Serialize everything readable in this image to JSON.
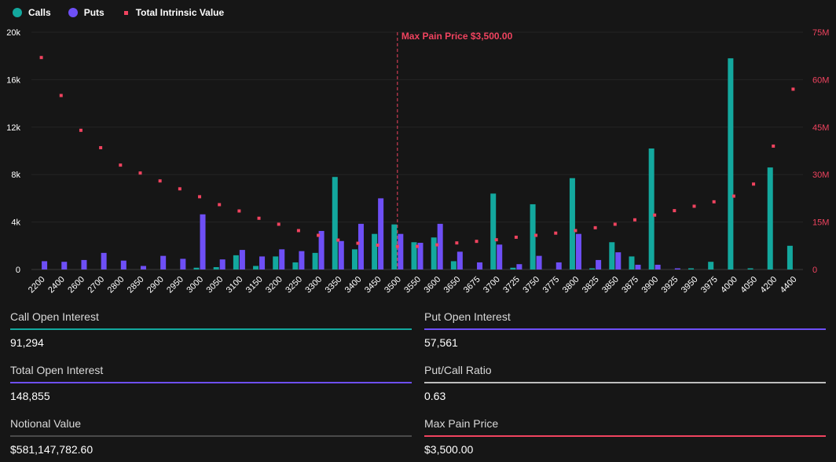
{
  "legend": {
    "calls": "Calls",
    "puts": "Puts",
    "intrinsic": "Total Intrinsic Value"
  },
  "colors": {
    "calls": "#13a89e",
    "puts": "#6e4ff6",
    "intrinsic": "#f0435f",
    "max_pain": "#f0435f",
    "gray_line": "#4a4a4a",
    "light_line": "#bdbdbd"
  },
  "chart_data": {
    "type": "bar",
    "title": "",
    "max_pain_label": "Max Pain Price $3,500.00",
    "max_pain_strike": "3500",
    "categories": [
      "2200",
      "2400",
      "2600",
      "2700",
      "2800",
      "2850",
      "2900",
      "2950",
      "3000",
      "3050",
      "3100",
      "3150",
      "3200",
      "3250",
      "3300",
      "3350",
      "3400",
      "3450",
      "3500",
      "3550",
      "3600",
      "3650",
      "3675",
      "3700",
      "3725",
      "3750",
      "3775",
      "3800",
      "3825",
      "3850",
      "3875",
      "3900",
      "3925",
      "3950",
      "3975",
      "4000",
      "4050",
      "4200",
      "4400"
    ],
    "series": [
      {
        "name": "Calls",
        "axis": "left",
        "values": [
          0,
          0,
          0,
          0,
          0,
          0,
          0,
          0,
          150,
          200,
          1200,
          300,
          1100,
          600,
          1400,
          7800,
          1700,
          3000,
          3800,
          2300,
          2700,
          700,
          0,
          6400,
          150,
          5500,
          0,
          7700,
          100,
          2300,
          1100,
          10200,
          0,
          100,
          650,
          17800,
          100,
          8600,
          2000
        ]
      },
      {
        "name": "Puts",
        "axis": "left",
        "values": [
          700,
          650,
          800,
          1400,
          750,
          300,
          1150,
          900,
          4650,
          850,
          1650,
          1100,
          1700,
          1550,
          3250,
          2400,
          3850,
          6000,
          3000,
          2250,
          3850,
          1500,
          600,
          2100,
          450,
          1150,
          600,
          3000,
          800,
          1450,
          400,
          400,
          100,
          0,
          0,
          0,
          0,
          0,
          0
        ]
      },
      {
        "name": "Total Intrinsic Value",
        "axis": "right",
        "values": [
          67000000,
          55000000,
          44000000,
          38500000,
          33000000,
          30500000,
          28000000,
          25500000,
          23000000,
          20500000,
          18500000,
          16200000,
          14300000,
          12300000,
          10800000,
          9300000,
          8300000,
          7700000,
          7300000,
          7300000,
          7800000,
          8400000,
          8900000,
          9400000,
          10200000,
          10800000,
          11500000,
          12300000,
          13200000,
          14300000,
          15700000,
          17200000,
          18600000,
          20000000,
          21400000,
          23200000,
          27000000,
          39000000,
          57000000
        ]
      }
    ],
    "y_left": {
      "min": 0,
      "max": 20000,
      "ticks": [
        0,
        4000,
        8000,
        12000,
        16000,
        20000
      ],
      "tick_labels": [
        "0",
        "4k",
        "8k",
        "12k",
        "16k",
        "20k"
      ]
    },
    "y_right": {
      "min": 0,
      "max": 75000000,
      "ticks": [
        0,
        15000000,
        30000000,
        45000000,
        60000000,
        75000000
      ],
      "tick_labels": [
        "0",
        "15M",
        "30M",
        "45M",
        "60M",
        "75M"
      ]
    },
    "grid": true,
    "legend_position": "top-left"
  },
  "stats": [
    {
      "label": "Call Open Interest",
      "value": "91,294",
      "line": "calls"
    },
    {
      "label": "Put Open Interest",
      "value": "57,561",
      "line": "puts"
    },
    {
      "label": "Total Open Interest",
      "value": "148,855",
      "line": "puts"
    },
    {
      "label": "Put/Call Ratio",
      "value": "0.63",
      "line": "light_line"
    },
    {
      "label": "Notional Value",
      "value": "$581,147,782.60",
      "line": "gray_line"
    },
    {
      "label": "Max Pain Price",
      "value": "$3,500.00",
      "line": "max_pain"
    }
  ]
}
